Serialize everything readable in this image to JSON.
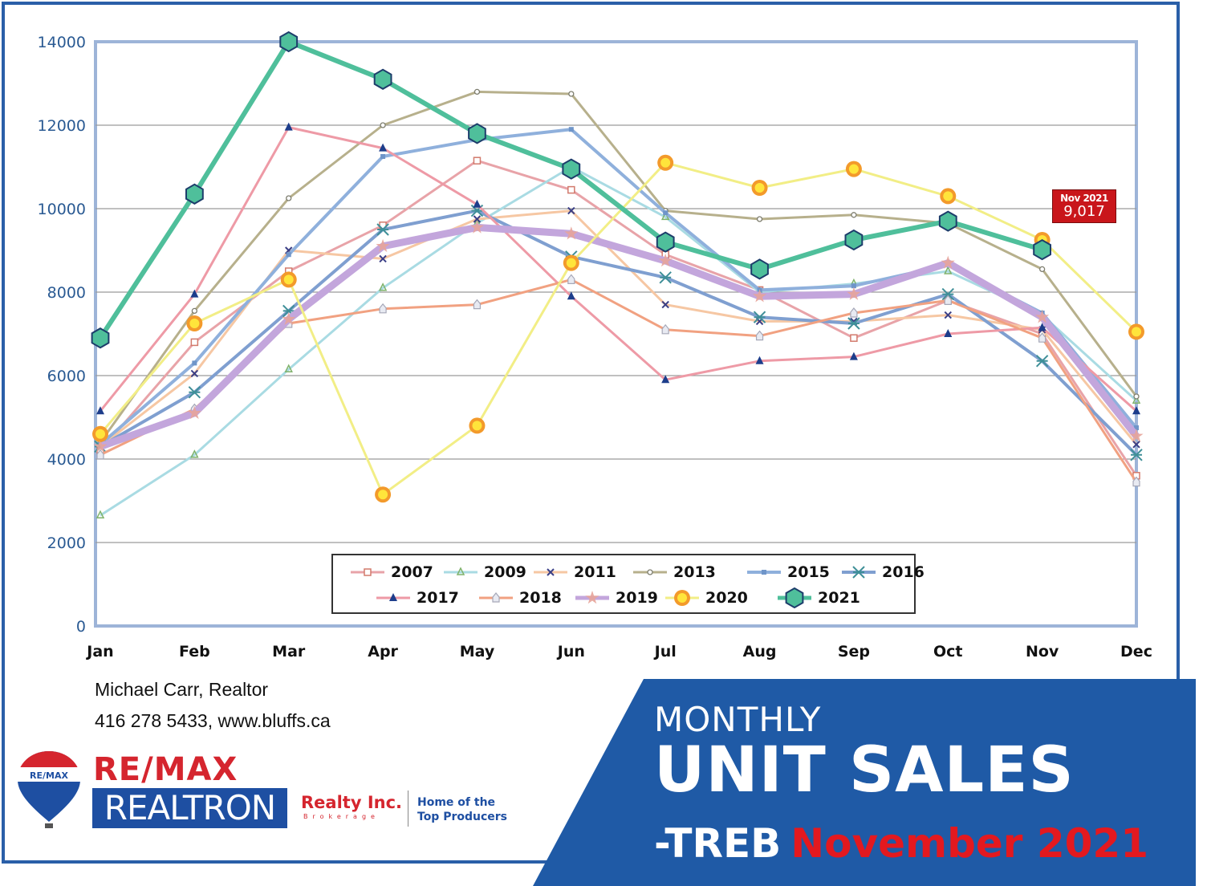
{
  "chart_data": {
    "type": "line",
    "title": "Monthly Unit Sales - TREB November 2021",
    "xlabel": "",
    "ylabel": "",
    "ylim": [
      0,
      14000
    ],
    "yticks": [
      0,
      2000,
      4000,
      6000,
      8000,
      10000,
      12000,
      14000
    ],
    "grid": true,
    "legend_position": "bottom-center inside plot",
    "categories": [
      "Jan",
      "Feb",
      "Mar",
      "Apr",
      "May",
      "Jun",
      "Jul",
      "Aug",
      "Sep",
      "Oct",
      "Nov",
      "Dec"
    ],
    "series": [
      {
        "name": "2007",
        "color": "#e8a3a8",
        "marker": "square",
        "width": 3,
        "values": [
          4200,
          6800,
          8500,
          9600,
          11150,
          10450,
          8900,
          8050,
          6900,
          7800,
          7000,
          3600
        ]
      },
      {
        "name": "2009",
        "color": "#a9dbe3",
        "marker": "triangle-open",
        "width": 3,
        "values": [
          2650,
          4100,
          6150,
          8100,
          9650,
          11000,
          9800,
          8000,
          8200,
          8500,
          7450,
          5400
        ]
      },
      {
        "name": "2011",
        "color": "#f6c7a3",
        "marker": "x",
        "width": 3,
        "values": [
          4300,
          6050,
          9000,
          8800,
          9750,
          9950,
          7700,
          7300,
          7300,
          7450,
          7100,
          4350
        ]
      },
      {
        "name": "2013",
        "color": "#b7b08c",
        "marker": "circle-small",
        "width": 3,
        "values": [
          4400,
          7550,
          10250,
          12000,
          12800,
          12750,
          9950,
          9750,
          9850,
          9650,
          8550,
          5500
        ]
      },
      {
        "name": "2015",
        "color": "#8fb0dc",
        "marker": "square-small",
        "width": 4,
        "values": [
          4350,
          6300,
          8900,
          11250,
          11650,
          11900,
          9900,
          8050,
          8150,
          8650,
          7500,
          4750
        ]
      },
      {
        "name": "2016",
        "color": "#7f9fd0",
        "marker": "asterisk",
        "width": 4,
        "values": [
          4300,
          5600,
          7550,
          9500,
          9950,
          8850,
          8350,
          7400,
          7250,
          7950,
          6350,
          4100
        ]
      },
      {
        "name": "2017",
        "color": "#ee9aa6",
        "marker": "triangle",
        "width": 3,
        "values": [
          5150,
          7950,
          11950,
          11450,
          10100,
          7900,
          5900,
          6350,
          6450,
          7000,
          7150,
          5150
        ]
      },
      {
        "name": "2018",
        "color": "#f1a181",
        "marker": "house",
        "width": 3,
        "values": [
          4100,
          5200,
          7250,
          7600,
          7700,
          8300,
          7100,
          6950,
          7500,
          7800,
          6900,
          3450
        ]
      },
      {
        "name": "2019",
        "color": "#c3a6dc",
        "marker": "star",
        "width": 9,
        "values": [
          4300,
          5100,
          7350,
          9100,
          9550,
          9400,
          8750,
          7900,
          7950,
          8700,
          7400,
          4550
        ]
      },
      {
        "name": "2020",
        "color": "#f2ee86",
        "marker": "sun",
        "width": 3,
        "values": [
          4600,
          7250,
          8300,
          3150,
          4800,
          8700,
          11100,
          10500,
          10950,
          10300,
          9250,
          7050
        ]
      },
      {
        "name": "2021",
        "color": "#4fbf9b",
        "marker": "hexagon",
        "width": 6,
        "values": [
          6900,
          10350,
          14000,
          13100,
          11800,
          10950,
          9200,
          8550,
          9250,
          9700,
          9017,
          null
        ]
      }
    ],
    "annotations": [
      {
        "x": "Nov",
        "series": "2021",
        "text": "Nov 2021 9,017"
      }
    ]
  },
  "callout": {
    "line1": "Nov 2021",
    "line2": "9,017"
  },
  "contact": {
    "name": "Michael Carr, Realtor",
    "details": "416 278 5433, www.bluffs.ca"
  },
  "brand": {
    "balloon_text": "RE/MAX",
    "remax": "RE/MAX",
    "realtron": "REALTRON",
    "realty": "Realty Inc.",
    "brokerage": "Brokerage",
    "tagline_1": "Home of the",
    "tagline_2": "Top Producers"
  },
  "banner": {
    "line1": "MONTHLY",
    "line2": "UNIT SALES",
    "line3_prefix": "-TREB",
    "line3_month": "November 2021",
    "bg_color": "#1f5aa6",
    "accent_color": "#e3191f"
  }
}
